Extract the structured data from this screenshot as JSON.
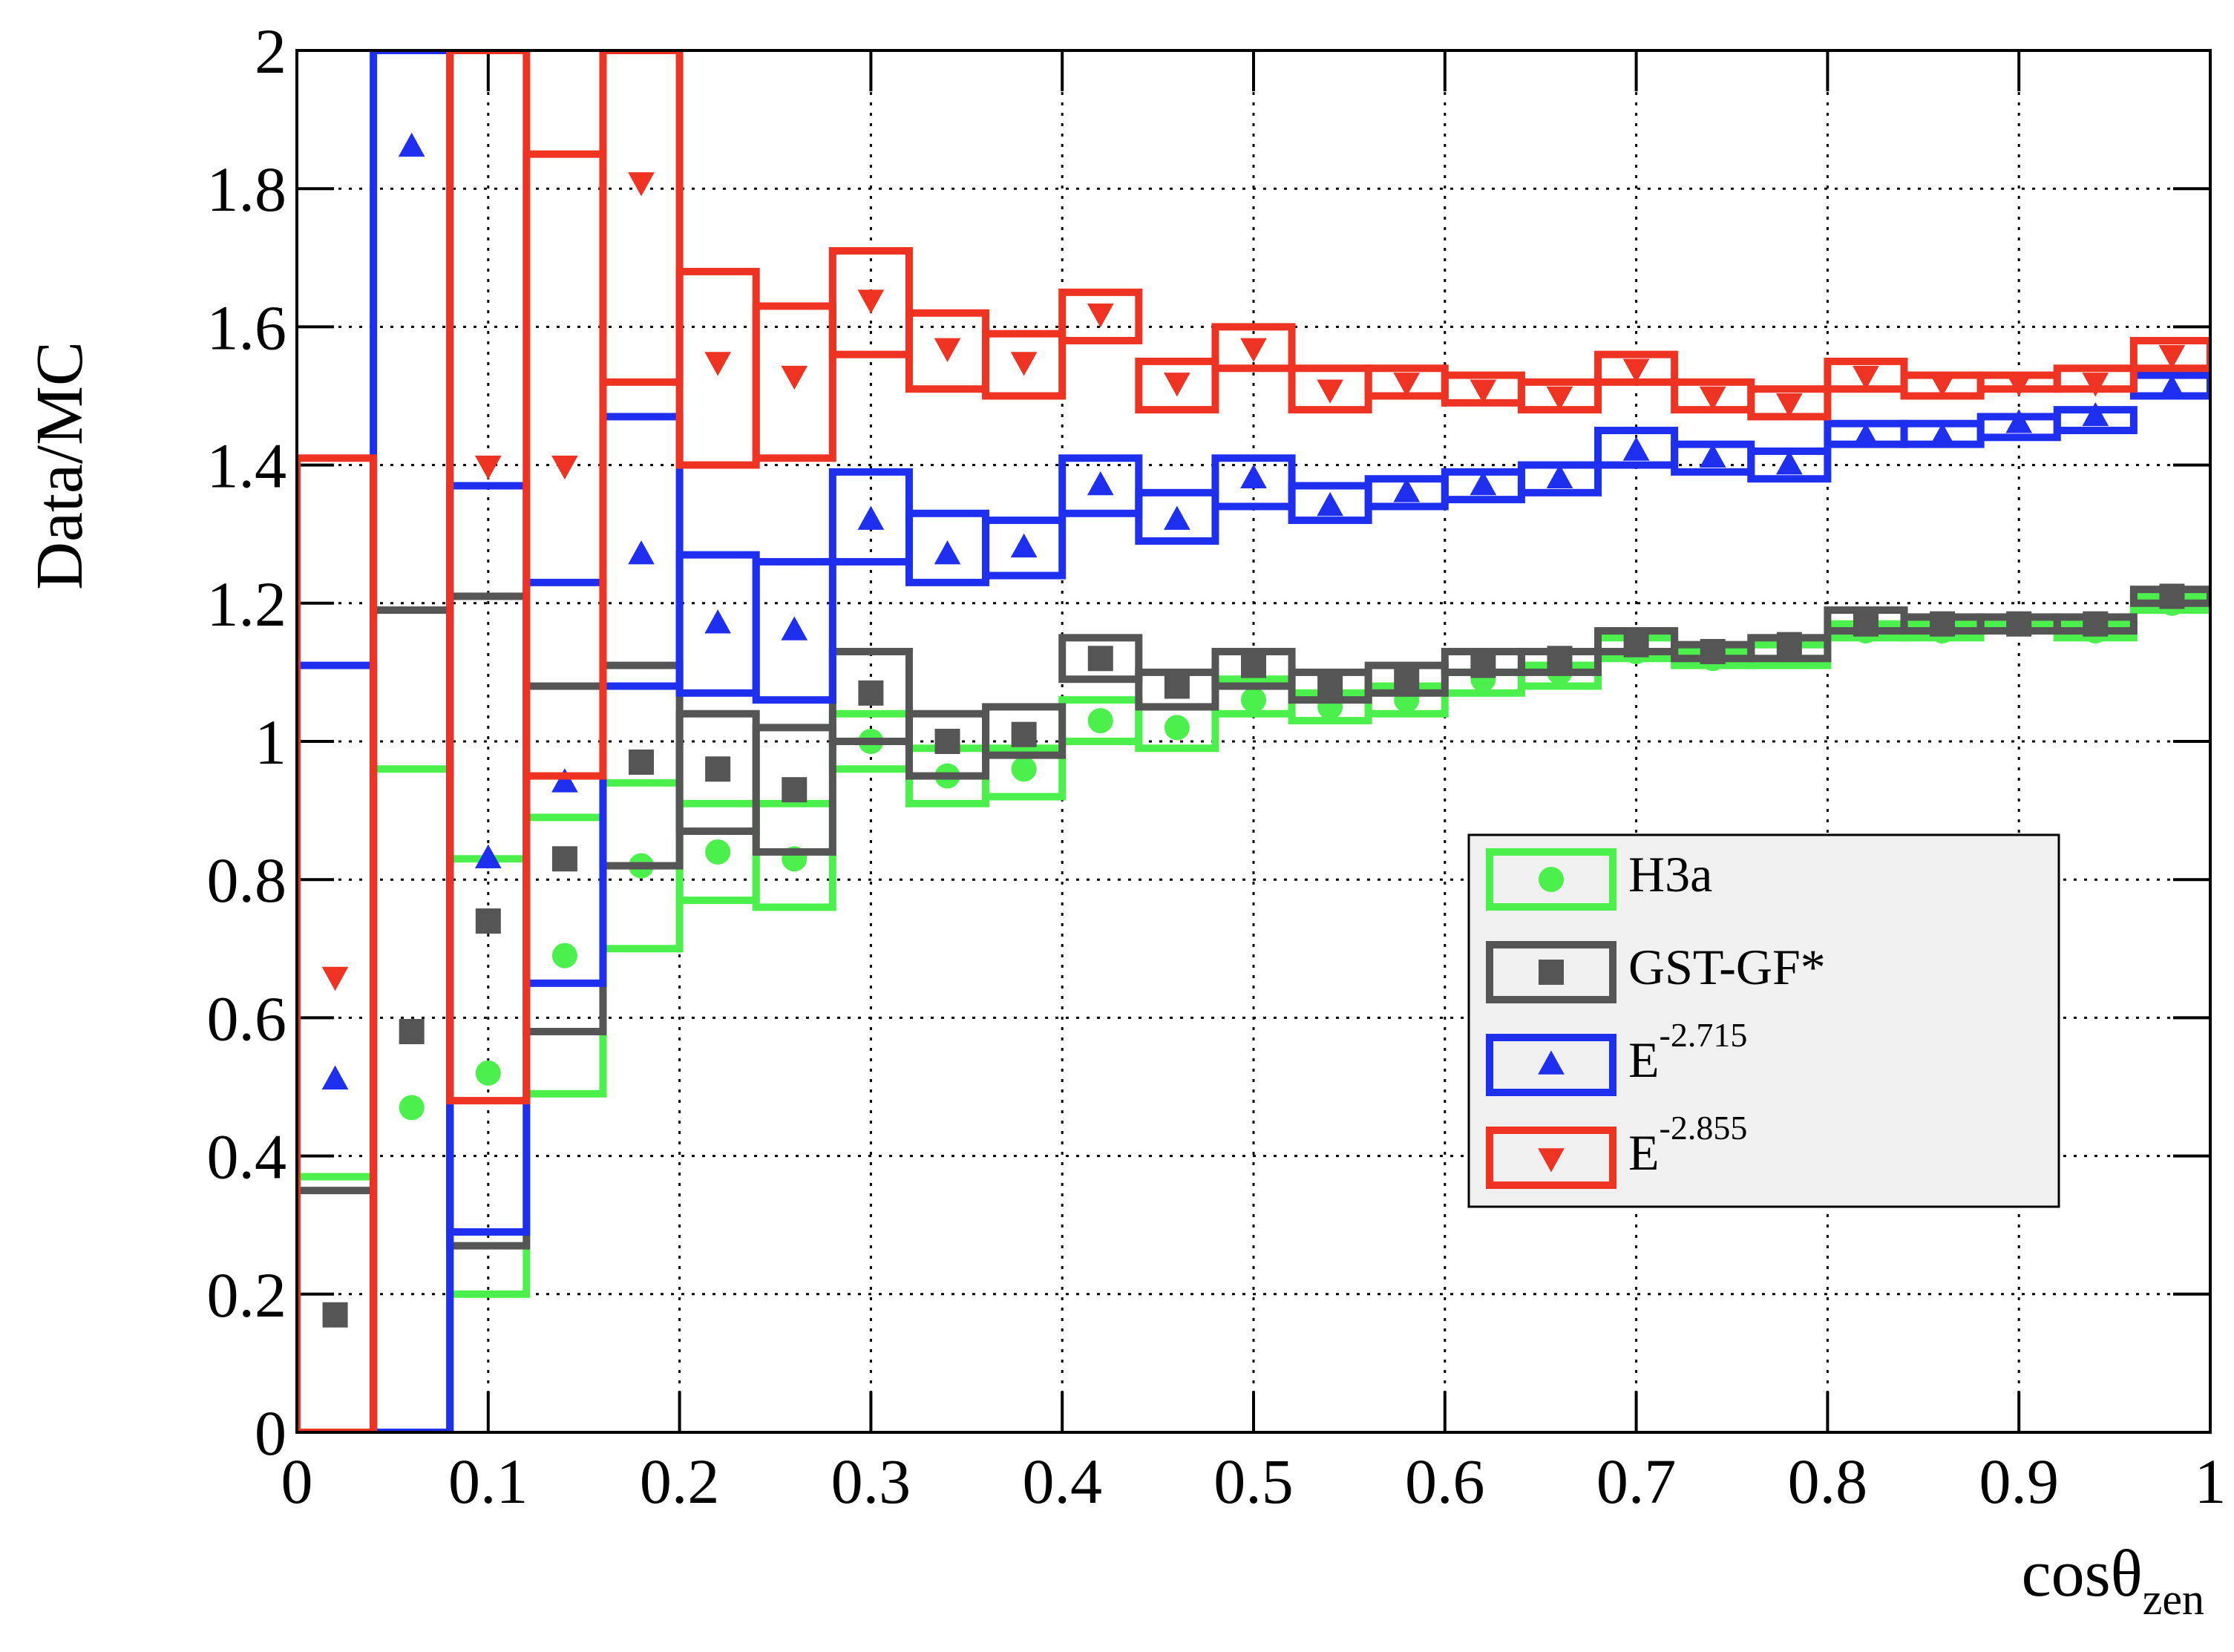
{
  "chart_data": {
    "type": "histogram-ratio",
    "ylabel": "Data/MC",
    "xlabel": "cosθ",
    "xlabel_subscript": "zen",
    "xlim": [
      0,
      1
    ],
    "ylim": [
      0,
      2
    ],
    "xticks": [
      0,
      0.1,
      0.2,
      0.3,
      0.4,
      0.5,
      0.6,
      0.7,
      0.8,
      0.9,
      1
    ],
    "yticks": [
      0,
      0.2,
      0.4,
      0.6,
      0.8,
      1,
      1.2,
      1.4,
      1.6,
      1.8,
      2
    ],
    "grid": true,
    "legend": "right",
    "bins": [
      0,
      0.04,
      0.08,
      0.12,
      0.16,
      0.2,
      0.24,
      0.28,
      0.32,
      0.36,
      0.4,
      0.44,
      0.48,
      0.52,
      0.56,
      0.6,
      0.64,
      0.68,
      0.72,
      0.76,
      0.8,
      0.84,
      0.88,
      0.92,
      0.96,
      1
    ],
    "series": [
      {
        "name": "H3a",
        "color": "#4cf04c",
        "marker": "circle",
        "values": [
          0.17,
          0.47,
          0.52,
          0.69,
          0.82,
          0.84,
          0.83,
          1.0,
          0.95,
          0.96,
          1.03,
          1.02,
          1.06,
          1.05,
          1.06,
          1.09,
          1.1,
          1.13,
          1.12,
          1.13,
          1.16,
          1.16,
          1.17,
          1.16,
          1.2
        ],
        "band_low": [
          0,
          0,
          0.2,
          0.49,
          0.7,
          0.77,
          0.76,
          0.96,
          0.91,
          0.92,
          1.0,
          0.99,
          1.04,
          1.03,
          1.04,
          1.07,
          1.08,
          1.12,
          1.11,
          1.11,
          1.15,
          1.15,
          1.16,
          1.15,
          1.19
        ],
        "band_high": [
          0.37,
          0.96,
          0.83,
          0.89,
          0.94,
          0.91,
          0.91,
          1.04,
          0.99,
          0.99,
          1.06,
          1.05,
          1.09,
          1.07,
          1.08,
          1.1,
          1.11,
          1.15,
          1.13,
          1.14,
          1.17,
          1.17,
          1.17,
          1.17,
          1.21
        ]
      },
      {
        "name": "GST-GF*",
        "color": "#555555",
        "marker": "square",
        "values": [
          0.17,
          0.58,
          0.74,
          0.83,
          0.97,
          0.96,
          0.93,
          1.07,
          1.0,
          1.01,
          1.12,
          1.08,
          1.11,
          1.08,
          1.09,
          1.11,
          1.12,
          1.14,
          1.13,
          1.14,
          1.17,
          1.17,
          1.17,
          1.17,
          1.21
        ],
        "band_low": [
          0,
          0,
          0.27,
          0.58,
          0.82,
          0.87,
          0.84,
          1.0,
          0.95,
          0.98,
          1.09,
          1.05,
          1.08,
          1.06,
          1.07,
          1.1,
          1.1,
          1.13,
          1.12,
          1.12,
          1.16,
          1.16,
          1.16,
          1.16,
          1.2
        ],
        "band_high": [
          0.35,
          1.19,
          1.21,
          1.08,
          1.11,
          1.04,
          1.02,
          1.13,
          1.04,
          1.05,
          1.15,
          1.1,
          1.13,
          1.1,
          1.11,
          1.13,
          1.13,
          1.16,
          1.14,
          1.15,
          1.19,
          1.18,
          1.18,
          1.18,
          1.22
        ]
      },
      {
        "name": "E",
        "exponent": "-2.715",
        "color": "#1f2ff0",
        "marker": "triangle-up",
        "values": [
          0.51,
          1.86,
          0.83,
          0.94,
          1.27,
          1.17,
          1.16,
          1.32,
          1.27,
          1.28,
          1.37,
          1.32,
          1.38,
          1.34,
          1.36,
          1.37,
          1.38,
          1.42,
          1.41,
          1.4,
          1.44,
          1.44,
          1.46,
          1.47,
          1.51
        ],
        "band_low": [
          0,
          0,
          0.29,
          0.65,
          1.08,
          1.07,
          1.06,
          1.26,
          1.23,
          1.24,
          1.33,
          1.29,
          1.34,
          1.32,
          1.34,
          1.35,
          1.36,
          1.4,
          1.39,
          1.38,
          1.43,
          1.43,
          1.44,
          1.45,
          1.5
        ],
        "band_high": [
          1.11,
          2,
          1.37,
          1.23,
          1.47,
          1.27,
          1.26,
          1.39,
          1.33,
          1.32,
          1.41,
          1.36,
          1.41,
          1.37,
          1.38,
          1.39,
          1.4,
          1.45,
          1.43,
          1.42,
          1.46,
          1.46,
          1.47,
          1.48,
          1.53
        ]
      },
      {
        "name": "E",
        "exponent": "-2.855",
        "color": "#ee3322",
        "marker": "triangle-down",
        "values": [
          0.66,
          null,
          1.4,
          1.4,
          1.81,
          1.55,
          1.53,
          1.64,
          1.57,
          1.55,
          1.62,
          1.52,
          1.57,
          1.51,
          1.52,
          1.51,
          1.5,
          1.54,
          1.5,
          1.49,
          1.53,
          1.52,
          1.52,
          1.52,
          1.56
        ],
        "band_low": [
          0,
          null,
          0.48,
          0.95,
          1.52,
          1.4,
          1.41,
          1.56,
          1.51,
          1.5,
          1.58,
          1.48,
          1.54,
          1.48,
          1.5,
          1.49,
          1.48,
          1.52,
          1.48,
          1.47,
          1.51,
          1.5,
          1.51,
          1.51,
          1.54
        ],
        "band_high": [
          1.41,
          null,
          2,
          1.85,
          2,
          1.68,
          1.63,
          1.71,
          1.62,
          1.59,
          1.65,
          1.55,
          1.6,
          1.54,
          1.54,
          1.53,
          1.52,
          1.56,
          1.52,
          1.51,
          1.55,
          1.53,
          1.53,
          1.54,
          1.58
        ]
      }
    ]
  }
}
